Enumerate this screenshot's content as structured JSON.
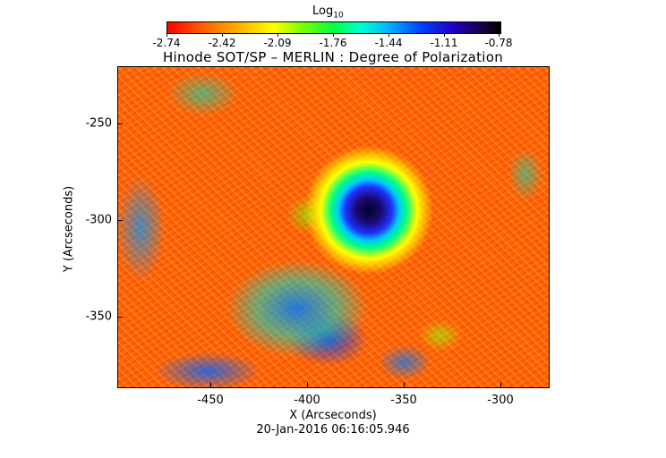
{
  "colorbar": {
    "label_base": "Log",
    "label_sub": "10",
    "ticks": [
      "-2.74",
      "-2.42",
      "-2.09",
      "-1.76",
      "-1.44",
      "-1.11",
      "-0.78"
    ]
  },
  "title": "Hinode SOT/SP – MERLIN : Degree of Polarization",
  "x_axis": {
    "title": "X (Arcseconds)",
    "ticks": [
      "-450",
      "-400",
      "-350",
      "-300"
    ]
  },
  "y_axis": {
    "title": "Y (Arcseconds)",
    "ticks": [
      "-250",
      "-300",
      "-350"
    ]
  },
  "timestamp": "20-Jan-2016 06:16:05.946"
}
